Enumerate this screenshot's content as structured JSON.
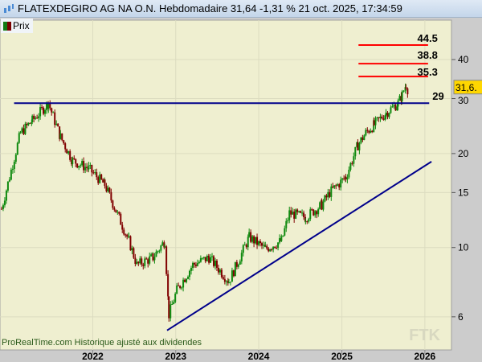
{
  "header": {
    "title": "FLATEXDEGIRO AG NA O.N. Hebdomadaire 31,64 -1,31 % 21 oct. 2025, 17:34:59",
    "icon": "candlestick-chart-icon"
  },
  "legend": {
    "label": "Prix"
  },
  "footer": {
    "source": "ProRealTime.com  Historique ajusté aux dividendes",
    "watermark": "FTK"
  },
  "price_tag": "31,6.",
  "colors": {
    "up": "#0f8a0f",
    "down": "#800000",
    "background": "#efefd0",
    "trendline": "#00008b",
    "resistance": "#ff0000",
    "tag": "#ffd700"
  },
  "chart_data": {
    "type": "candlestick",
    "title": "",
    "scale": "log",
    "grid": true,
    "xlim": [
      "2020-11-19",
      "2026-04-28"
    ],
    "ylim": [
      4.7,
      53.5
    ],
    "x_ticks": [
      "2022",
      "2023",
      "2024",
      "2025",
      "2026"
    ],
    "y_ticks": [
      6,
      10,
      15,
      20,
      30,
      40
    ],
    "y_tick_labels": [
      "6",
      "10",
      "15",
      "20",
      "30",
      "40"
    ],
    "series": [
      {
        "points": [
          [
            "2020-11-26",
            13.3
          ],
          [
            "2021-02-17",
            23.3
          ],
          [
            "2021-04-10",
            25.5
          ],
          [
            "2021-06-20",
            29.0
          ],
          [
            "2021-08-12",
            22.6
          ],
          [
            "2021-10-04",
            19.0
          ],
          [
            "2021-12-14",
            17.9
          ],
          [
            "2022-02-23",
            15.9
          ],
          [
            "2022-06-09",
            10.5
          ],
          [
            "2022-07-14",
            8.8
          ],
          [
            "2022-09-23",
            9.3
          ],
          [
            "2022-11-14",
            10.5
          ],
          [
            "2022-12-02",
            6.1
          ],
          [
            "2023-01-06",
            7.3
          ],
          [
            "2023-03-17",
            8.8
          ],
          [
            "2023-05-27",
            9.3
          ],
          [
            "2023-08-23",
            7.8
          ],
          [
            "2023-11-20",
            10.8
          ],
          [
            "2024-01-30",
            9.9
          ],
          [
            "2024-04-10",
            10.5
          ],
          [
            "2024-05-15",
            12.9
          ],
          [
            "2024-07-25",
            12.5
          ],
          [
            "2024-10-04",
            13.7
          ],
          [
            "2024-11-08",
            15.0
          ],
          [
            "2025-01-18",
            16.8
          ],
          [
            "2025-03-12",
            21.3
          ],
          [
            "2025-04-16",
            23.3
          ],
          [
            "2025-05-22",
            24.7
          ],
          [
            "2025-07-14",
            27.0
          ],
          [
            "2025-09-05",
            29.0
          ],
          [
            "2025-09-23",
            30.8
          ],
          [
            "2025-10-10",
            33.3
          ],
          [
            "2025-10-21",
            31.6
          ]
        ]
      }
    ],
    "annotations": {
      "horizontal_lines": [
        {
          "value": 44.5,
          "label": "44.5",
          "color": "#ff0000",
          "from": "2025-03-15",
          "to": "2026-01-15"
        },
        {
          "value": 38.8,
          "label": "38.8",
          "color": "#ff0000",
          "from": "2025-03-15",
          "to": "2026-01-15"
        },
        {
          "value": 35.3,
          "label": "35.3",
          "color": "#ff0000",
          "from": "2025-03-15",
          "to": "2026-01-15"
        },
        {
          "value": 29,
          "label": "29",
          "color": "#00008b",
          "from": "2021-01-20",
          "to": "2026-01-20"
        }
      ],
      "trendline": {
        "from": [
          "2022-11-24",
          5.43
        ],
        "to": [
          "2026-01-30",
          18.85
        ],
        "color": "#00008b"
      }
    }
  }
}
